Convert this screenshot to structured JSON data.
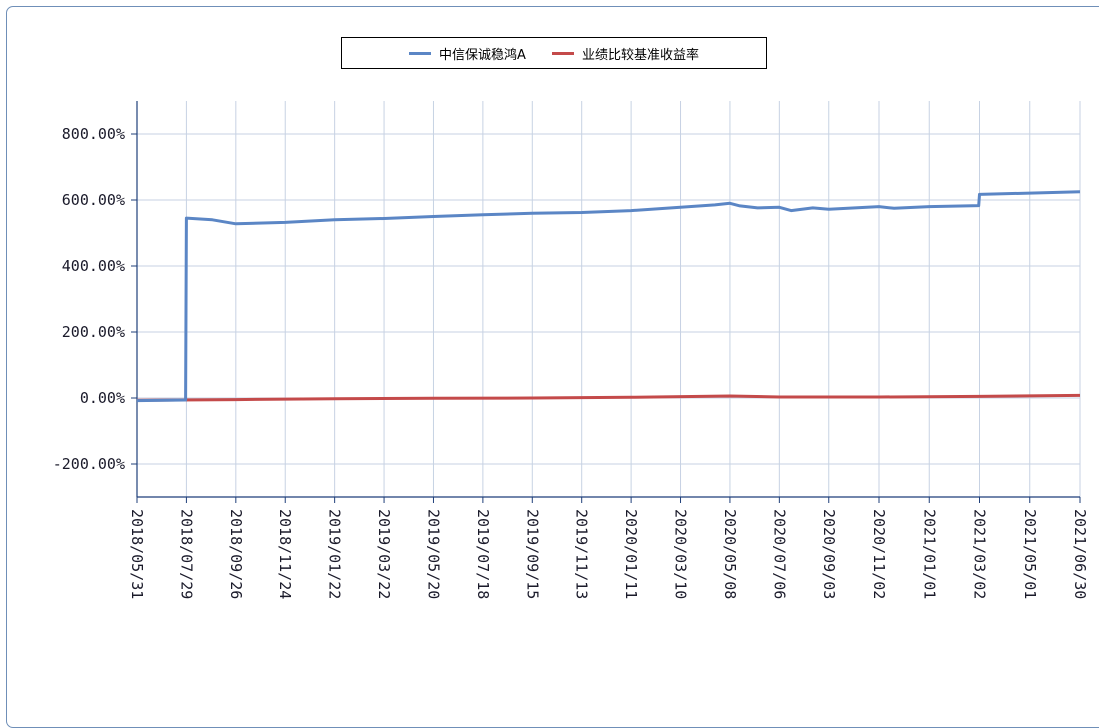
{
  "chart_data": {
    "type": "line",
    "title": "",
    "xlabel": "",
    "ylabel": "",
    "x_ticks": [
      "2018/05/31",
      "2018/07/29",
      "2018/09/26",
      "2018/11/24",
      "2019/01/22",
      "2019/03/22",
      "2019/05/20",
      "2019/07/18",
      "2019/09/15",
      "2019/11/13",
      "2020/01/11",
      "2020/03/10",
      "2020/05/08",
      "2020/07/06",
      "2020/09/03",
      "2020/11/02",
      "2021/01/01",
      "2021/03/02",
      "2021/05/01",
      "2021/06/30"
    ],
    "y_ticks": [
      "800.00%",
      "600.00%",
      "400.00%",
      "200.00%",
      "0.00%",
      "-200.00%"
    ],
    "ylim": [
      -300,
      900
    ],
    "grid": true,
    "legend_position": "top-center",
    "series": [
      {
        "name": "中信保诚稳鸿A",
        "color": "#5b86c5",
        "points": [
          [
            "2018/05/31",
            -8
          ],
          [
            "2018/07/28",
            -6
          ],
          [
            "2018/07/29",
            545
          ],
          [
            "2018/08/29",
            540
          ],
          [
            "2018/09/26",
            528
          ],
          [
            "2018/11/24",
            532
          ],
          [
            "2019/01/22",
            540
          ],
          [
            "2019/03/22",
            544
          ],
          [
            "2019/05/20",
            550
          ],
          [
            "2019/07/18",
            555
          ],
          [
            "2019/09/15",
            560
          ],
          [
            "2019/11/13",
            562
          ],
          [
            "2020/01/11",
            568
          ],
          [
            "2020/03/10",
            578
          ],
          [
            "2020/04/20",
            585
          ],
          [
            "2020/05/08",
            590
          ],
          [
            "2020/05/20",
            582
          ],
          [
            "2020/06/10",
            576
          ],
          [
            "2020/07/06",
            578
          ],
          [
            "2020/07/20",
            568
          ],
          [
            "2020/08/15",
            576
          ],
          [
            "2020/09/03",
            572
          ],
          [
            "2020/11/02",
            580
          ],
          [
            "2020/11/20",
            575
          ],
          [
            "2021/01/01",
            580
          ],
          [
            "2021/03/01",
            583
          ],
          [
            "2021/03/02",
            617
          ],
          [
            "2021/05/01",
            621
          ],
          [
            "2021/06/30",
            625
          ]
        ]
      },
      {
        "name": "业绩比较基准收益率",
        "color": "#c44a4a",
        "points": [
          [
            "2018/05/31",
            -7
          ],
          [
            "2018/09/26",
            -5
          ],
          [
            "2019/01/22",
            -2
          ],
          [
            "2019/05/20",
            -1
          ],
          [
            "2019/09/15",
            0
          ],
          [
            "2020/01/11",
            2
          ],
          [
            "2020/05/08",
            6
          ],
          [
            "2020/07/06",
            3
          ],
          [
            "2020/11/02",
            3
          ],
          [
            "2021/03/02",
            5
          ],
          [
            "2021/06/30",
            8
          ]
        ]
      }
    ]
  }
}
